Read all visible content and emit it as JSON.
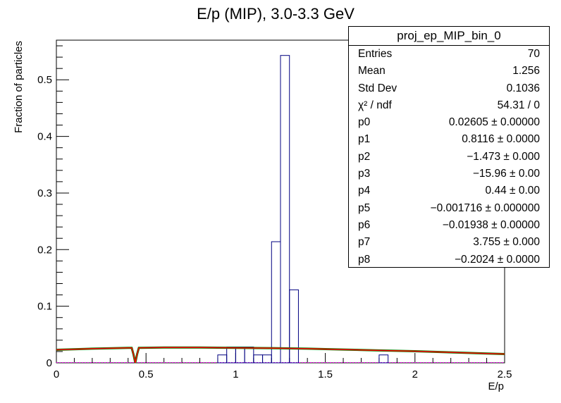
{
  "chart_data": {
    "type": "bar",
    "title": "E/p (MIP), 3.0-3.3 GeV",
    "xlabel": "E/p",
    "ylabel": "Fraction of particles",
    "xlim": [
      0,
      2.5
    ],
    "ylim": [
      0,
      0.57
    ],
    "x_ticks": [
      "0",
      "0.5",
      "1",
      "1.5",
      "2",
      "2.5"
    ],
    "y_ticks": [
      "0",
      "0.1",
      "0.2",
      "0.3",
      "0.4",
      "0.5"
    ],
    "histogram": {
      "bin_width": 0.05,
      "bins": [
        {
          "x0": 0.9,
          "x1": 0.95,
          "y": 0.014
        },
        {
          "x0": 0.95,
          "x1": 1.0,
          "y": 0.028
        },
        {
          "x0": 1.0,
          "x1": 1.05,
          "y": 0.028
        },
        {
          "x0": 1.05,
          "x1": 1.1,
          "y": 0.028
        },
        {
          "x0": 1.1,
          "x1": 1.15,
          "y": 0.014
        },
        {
          "x0": 1.15,
          "x1": 1.2,
          "y": 0.014
        },
        {
          "x0": 1.2,
          "x1": 1.25,
          "y": 0.214
        },
        {
          "x0": 1.25,
          "x1": 1.3,
          "y": 0.543
        },
        {
          "x0": 1.3,
          "x1": 1.35,
          "y": 0.129
        },
        {
          "x0": 1.8,
          "x1": 1.85,
          "y": 0.014
        }
      ]
    },
    "fit_curve": {
      "x": [
        0,
        0.2,
        0.4,
        0.42,
        0.43,
        0.44,
        0.45,
        0.46,
        0.6,
        0.8,
        1.0,
        1.2,
        1.4,
        1.6,
        1.8,
        2.0,
        2.2,
        2.4,
        2.5
      ],
      "y": [
        0.023,
        0.025,
        0.0265,
        0.0265,
        0.015,
        0.0,
        0.015,
        0.0265,
        0.027,
        0.027,
        0.0265,
        0.026,
        0.025,
        0.0235,
        0.022,
        0.0205,
        0.0185,
        0.0165,
        0.0155
      ]
    },
    "stats_box": {
      "title": "proj_ep_MIP_bin_0",
      "rows": [
        {
          "key": "Entries",
          "value": "70"
        },
        {
          "key": "Mean",
          "value": "1.256"
        },
        {
          "key": "Std Dev",
          "value": "0.1036"
        },
        {
          "key": "χ² / ndf",
          "value": "54.31 / 0"
        },
        {
          "key": "p0",
          "value": "0.02605 ± 0.00000"
        },
        {
          "key": "p1",
          "value": "0.8116 ± 0.0000"
        },
        {
          "key": "p2",
          "value": "−1.473 ± 0.000"
        },
        {
          "key": "p3",
          "value": "−15.96 ± 0.00"
        },
        {
          "key": "p4",
          "value": "0.44 ± 0.00"
        },
        {
          "key": "p5",
          "value": "−0.001716 ± 0.000000"
        },
        {
          "key": "p6",
          "value": "−0.01938 ± 0.00000"
        },
        {
          "key": "p7",
          "value": "3.755 ± 0.000"
        },
        {
          "key": "p8",
          "value": "−0.2024 ± 0.0000"
        }
      ]
    },
    "colors": {
      "histogram": "#000080",
      "fit": "#ff0000",
      "fit_overlay": "#008000",
      "baseline": "#ff00ff"
    }
  }
}
